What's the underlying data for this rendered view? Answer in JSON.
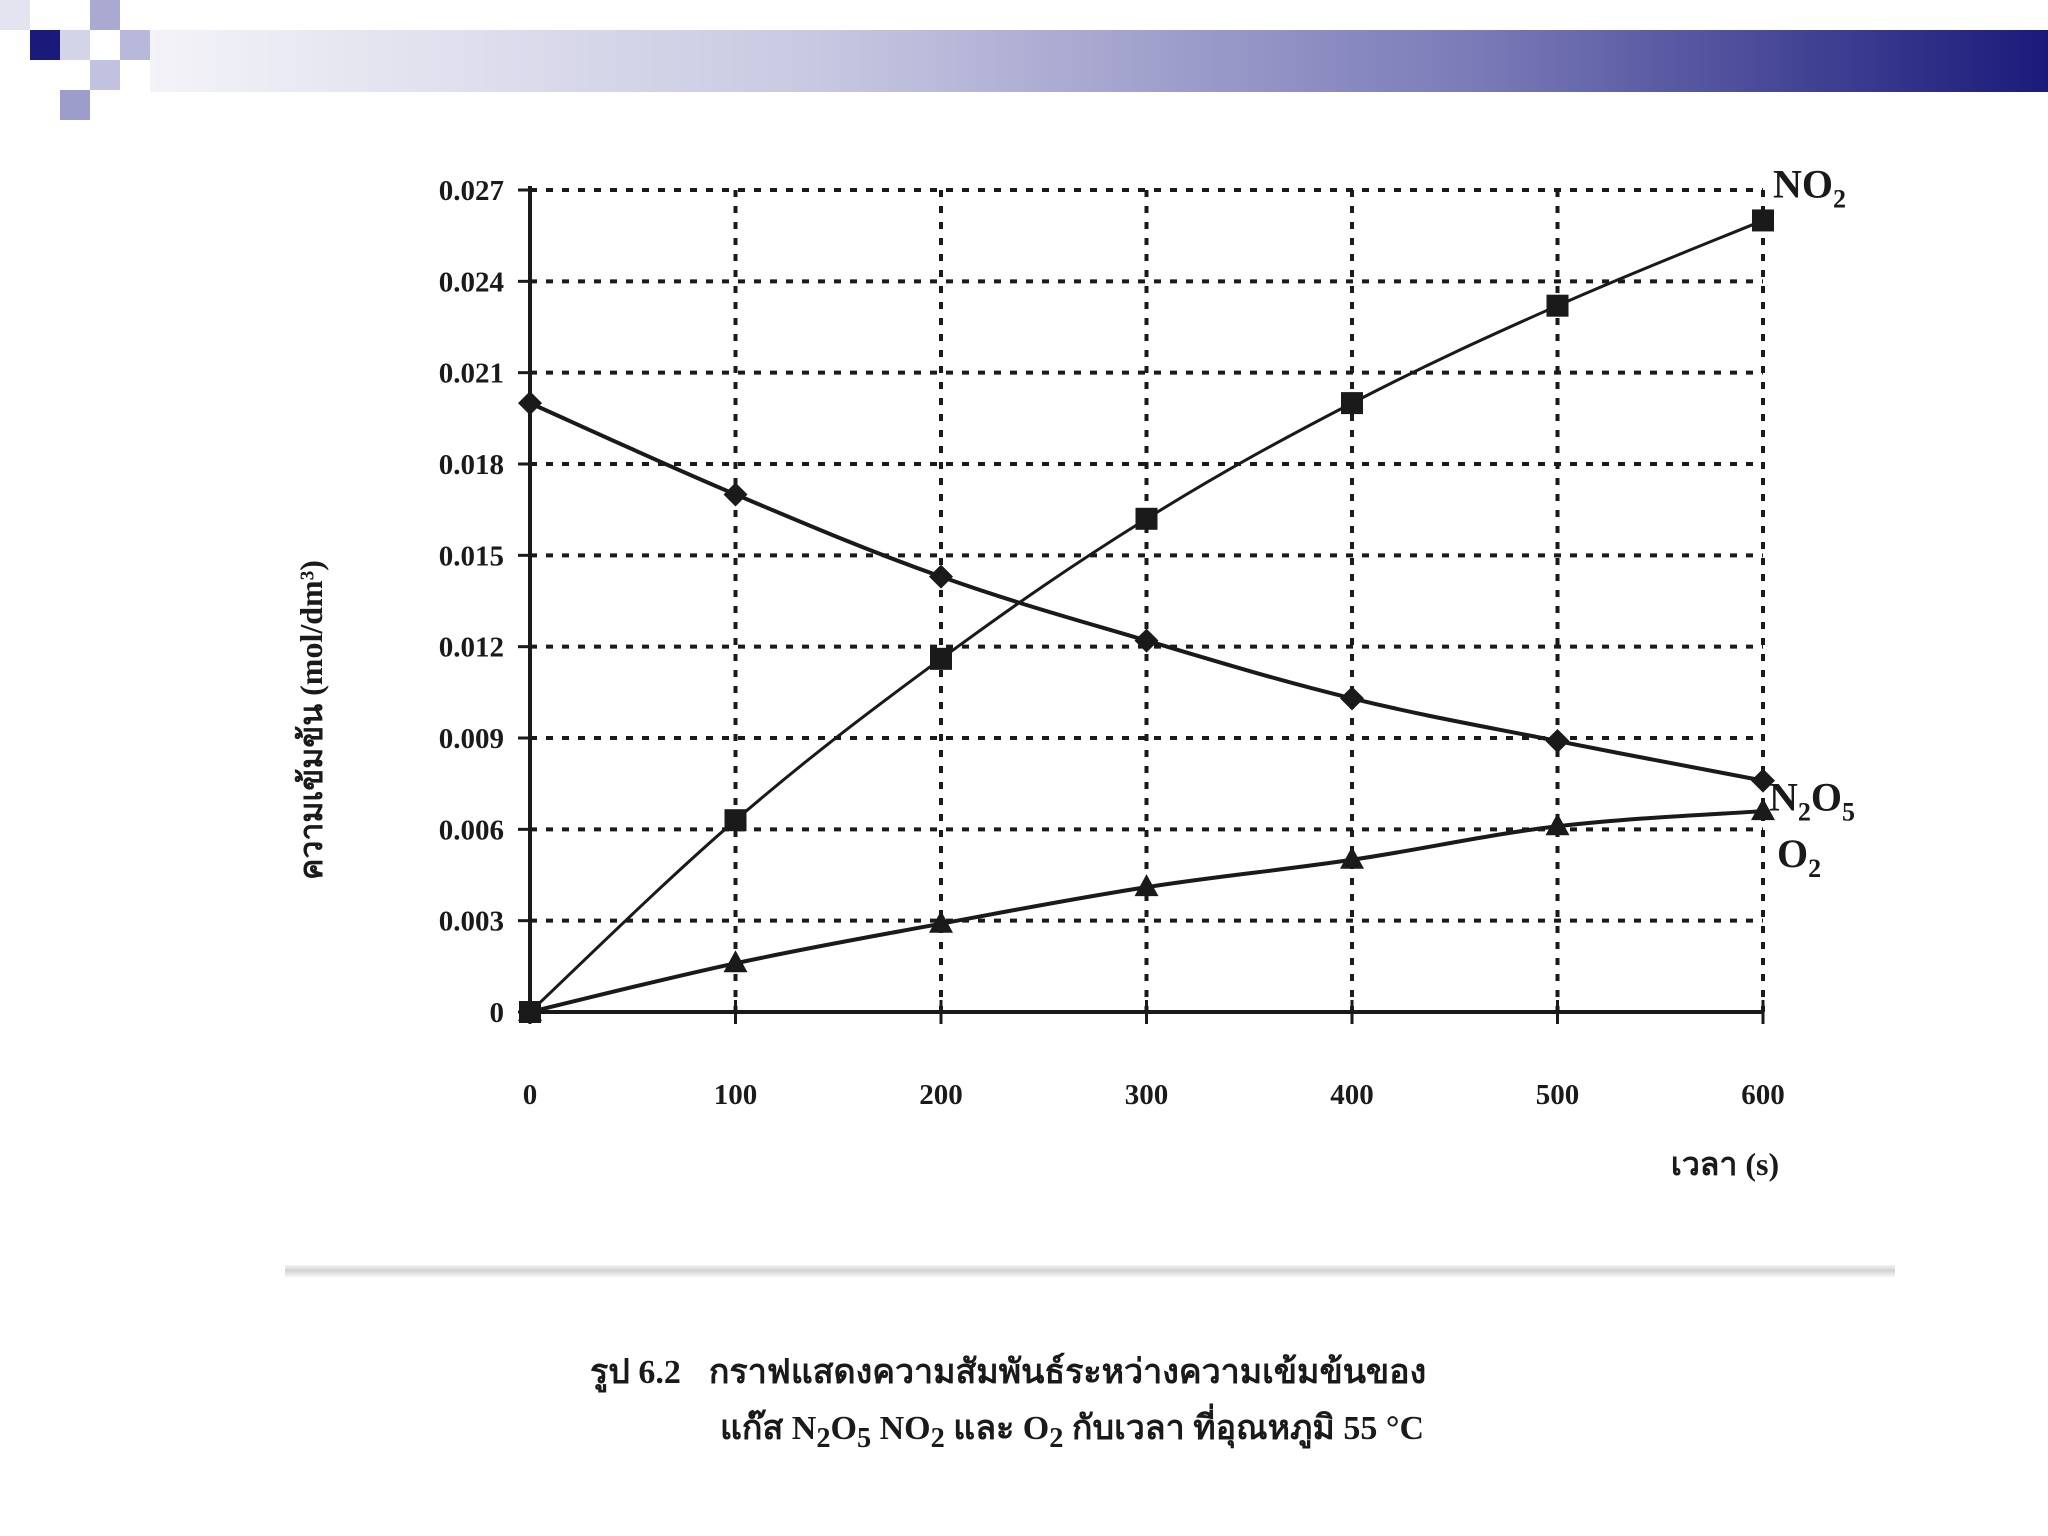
{
  "theme": {
    "header_dark": "#1a1a7a",
    "header_mid": "#5d5dab",
    "header_light": "#ececf4",
    "ink": "#1a1a1a"
  },
  "caption": {
    "figure_number": "รูป 6.2",
    "line1_text": "กราฟแสดงความสัมพันธ์ระหว่างความเข้มข้นของ",
    "line2": {
      "t1": "แก๊ส N",
      "s1": "2",
      "t2": "O",
      "s2": "5",
      "t3": "  NO",
      "s3": "2",
      "t4": " และ O",
      "s4": "2",
      "t5": " กับเวลา  ที่อุณหภูมิ 55 °C"
    }
  },
  "chart_data": {
    "type": "line",
    "title": "",
    "xlabel": "เวลา (s)",
    "ylabel": "ความเข้มข้น (mol/dm³)",
    "x": [
      0,
      100,
      200,
      300,
      400,
      500,
      600
    ],
    "xticks": [
      "0",
      "100",
      "200",
      "300",
      "400",
      "500",
      "600"
    ],
    "yticks": [
      "0",
      "0.003",
      "0.006",
      "0.009",
      "0.012",
      "0.015",
      "0.018",
      "0.021",
      "0.024",
      "0.027"
    ],
    "xlim": [
      0,
      600
    ],
    "ylim": [
      0,
      0.027
    ],
    "grid": true,
    "grid_style": "dotted",
    "series": [
      {
        "name": "NO2",
        "label_main": "NO",
        "label_sub": "2",
        "marker": "square",
        "values": [
          0,
          0.0063,
          0.0116,
          0.0162,
          0.02,
          0.0232,
          0.026
        ]
      },
      {
        "name": "N2O5",
        "label_main": "N",
        "label_sub": "2",
        "label_main2": "O",
        "label_sub2": "5",
        "marker": "diamond",
        "values": [
          0.02,
          0.017,
          0.0143,
          0.0122,
          0.0103,
          0.0089,
          0.0076
        ]
      },
      {
        "name": "O2",
        "label_main": "O",
        "label_sub": "2",
        "marker": "triangle",
        "values": [
          0,
          0.0016,
          0.0029,
          0.0041,
          0.005,
          0.0061,
          0.0066
        ]
      }
    ]
  }
}
